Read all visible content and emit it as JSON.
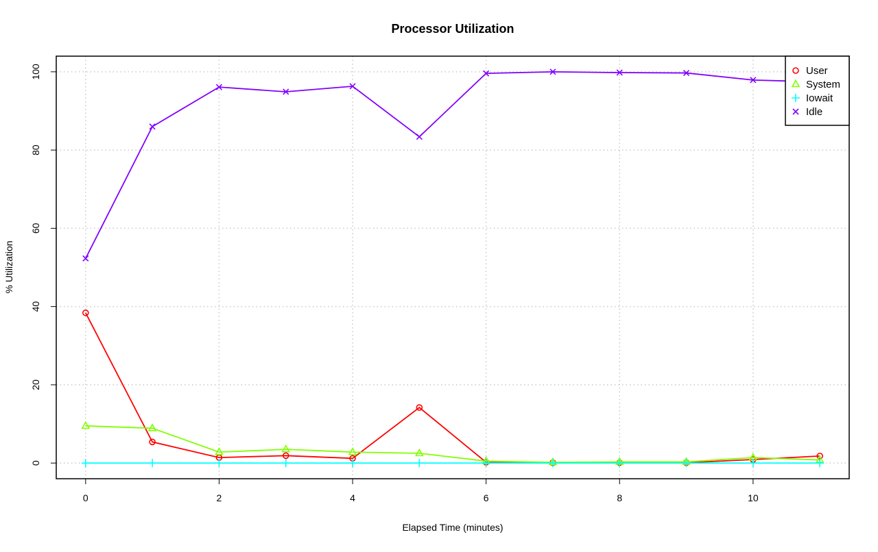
{
  "chart_data": {
    "type": "line",
    "title": "Processor Utilization",
    "xlabel": "Elapsed Time (minutes)",
    "ylabel": "% Utilization",
    "xlim": [
      -0.44,
      11.44
    ],
    "ylim": [
      -4,
      104
    ],
    "xticks": [
      0,
      2,
      4,
      6,
      8,
      10
    ],
    "yticks": [
      0,
      20,
      40,
      60,
      80,
      100
    ],
    "grid": true,
    "legend_position": "top-right",
    "x": [
      0,
      1,
      2,
      3,
      4,
      5,
      6,
      7,
      8,
      9,
      10,
      11
    ],
    "series": [
      {
        "name": "User",
        "color": "#ff0000",
        "marker": "circle",
        "values": [
          38.4,
          5.4,
          1.4,
          1.9,
          1.2,
          14.2,
          0.2,
          0.1,
          0.1,
          0.1,
          0.9,
          1.8
        ]
      },
      {
        "name": "System",
        "color": "#80ff00",
        "marker": "triangle",
        "values": [
          9.5,
          8.9,
          2.8,
          3.5,
          2.8,
          2.5,
          0.5,
          0.2,
          0.3,
          0.3,
          1.4,
          0.8
        ]
      },
      {
        "name": "Iowait",
        "color": "#00ffff",
        "marker": "plus",
        "values": [
          0,
          0,
          0,
          0,
          0,
          0,
          0,
          0,
          0,
          0,
          0,
          0
        ]
      },
      {
        "name": "Idle",
        "color": "#8000ff",
        "marker": "cross",
        "values": [
          52.3,
          86.0,
          96.1,
          94.9,
          96.3,
          83.4,
          99.6,
          100.0,
          99.8,
          99.7,
          97.9,
          97.4
        ]
      }
    ]
  }
}
